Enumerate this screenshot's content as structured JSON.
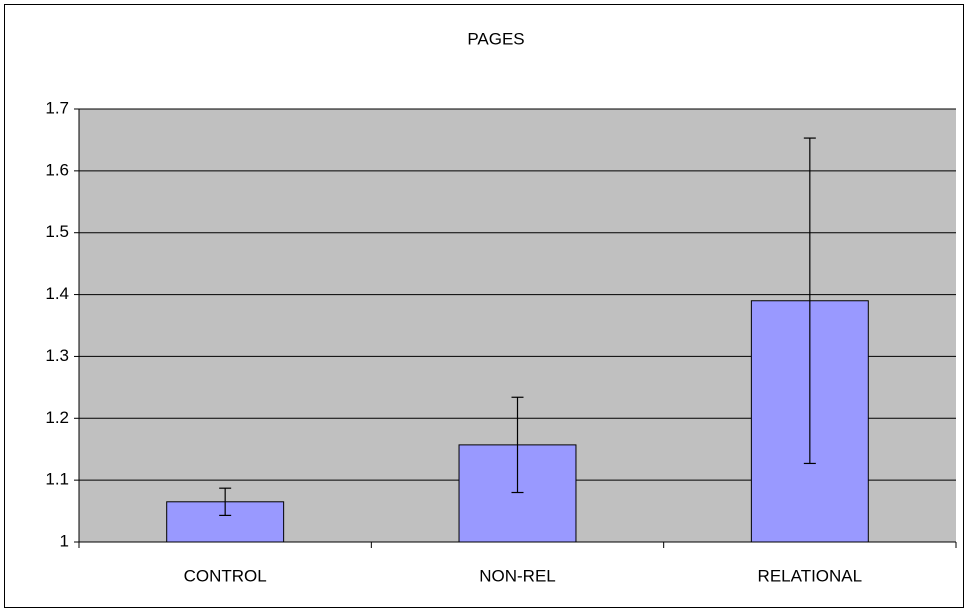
{
  "chart_data": {
    "type": "bar",
    "title": "PAGES",
    "categories": [
      "CONTROL",
      "NON-REL",
      "RELATIONAL"
    ],
    "values": [
      1.065,
      1.157,
      1.39
    ],
    "errors": [
      0.022,
      0.077,
      0.263
    ],
    "color": "#9999ff",
    "plot_background": "#c0c0c0",
    "ylim": [
      1,
      1.7
    ],
    "yticks": [
      1,
      1.1,
      1.2,
      1.3,
      1.4,
      1.5,
      1.6,
      1.7
    ],
    "grid": true
  }
}
